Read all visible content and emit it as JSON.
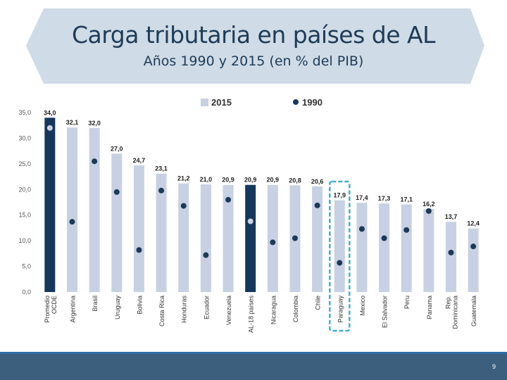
{
  "slide": {
    "title": "Carga tributaria en países de AL",
    "subtitle": "Años 1990 y 2015 (en % del PIB)",
    "page_number": "9"
  },
  "colors": {
    "banner": "#cfdbe6",
    "bar_2015": "#c8d1e3",
    "bar_highlight": "#16375c",
    "dot_1990": "#1d3957",
    "dot_1990_highlight": "#c8d1e3",
    "paraguay_box": "#3fb0c8"
  },
  "chart_data": {
    "type": "bar",
    "legend": [
      "2015",
      "1990"
    ],
    "legend_position": "top",
    "ylim": [
      0,
      35
    ],
    "yticks": [
      "0,0",
      "5,0",
      "10,0",
      "15,0",
      "20,0",
      "25,0",
      "30,0",
      "35,0"
    ],
    "categories": [
      "Promedio OCDE",
      "Argentina",
      "Brasil",
      "Uruguay",
      "Bolivia",
      "Costa Rica",
      "Honduras",
      "Ecuador",
      "Venezuela",
      "AL-18 países",
      "Nicaragua",
      "Colombia",
      "Chile",
      "Paraguay",
      "Mexico",
      "El Salvador",
      "Peru",
      "Panama",
      "Rep. Dominicana",
      "Guatemala"
    ],
    "series": [
      {
        "name": "2015",
        "values": [
          34.0,
          32.1,
          32.0,
          27.0,
          24.7,
          23.1,
          21.2,
          21.0,
          20.9,
          20.9,
          20.9,
          20.8,
          20.6,
          17.9,
          17.4,
          17.3,
          17.1,
          16.2,
          13.7,
          12.4
        ],
        "labels": [
          "34,0",
          "32,1",
          "32,0",
          "27,0",
          "24,7",
          "23,1",
          "21,2",
          "21,0",
          "20,9",
          "20,9",
          "20,9",
          "20,8",
          "20,6",
          "17,9",
          "17,4",
          "17,3",
          "17,1",
          "16,2",
          "13,7",
          "12,4"
        ]
      },
      {
        "name": "1990",
        "values": [
          32.0,
          13.7,
          25.5,
          19.5,
          8.2,
          19.8,
          16.8,
          7.2,
          18.0,
          13.8,
          9.7,
          10.5,
          16.9,
          5.7,
          12.3,
          10.5,
          12.1,
          15.8,
          7.7,
          8.9
        ]
      }
    ],
    "highlighted_categories": [
      "Promedio OCDE",
      "AL-18 países"
    ],
    "boxed_category": "Paraguay"
  }
}
